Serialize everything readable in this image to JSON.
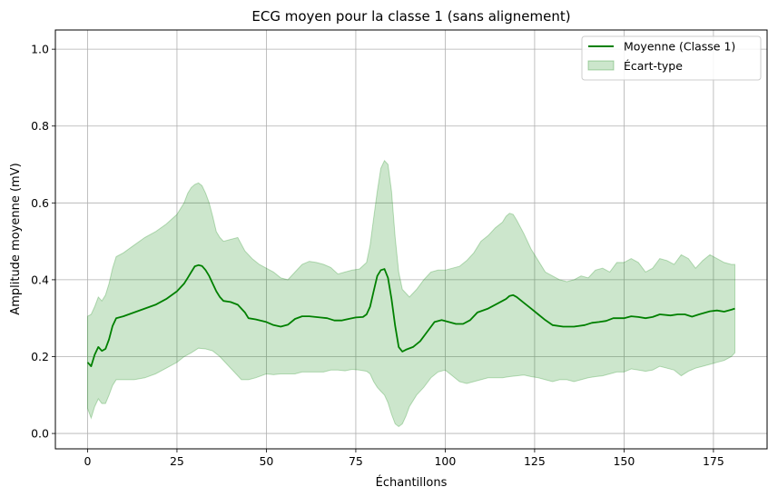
{
  "chart_data": {
    "type": "line",
    "title": "ECG moyen pour la classe 1 (sans alignement)",
    "xlabel": "Échantillons",
    "ylabel": "Amplitude moyenne (mV)",
    "xlim": [
      -9,
      190
    ],
    "ylim": [
      -0.04,
      1.05
    ],
    "xticks": [
      0,
      25,
      50,
      75,
      100,
      125,
      150,
      175
    ],
    "yticks": [
      0.0,
      0.2,
      0.4,
      0.6,
      0.8,
      1.0
    ],
    "xtick_labels": [
      "0",
      "25",
      "50",
      "75",
      "100",
      "125",
      "150",
      "175"
    ],
    "ytick_labels": [
      "0.0",
      "0.2",
      "0.4",
      "0.6",
      "0.8",
      "1.0"
    ],
    "grid": true,
    "legend_position": "top-right",
    "legend": {
      "mean_label": "Moyenne (Classe 1)",
      "std_label": "Écart-type"
    },
    "colors": {
      "mean_line": "#008000",
      "std_fill": "#008000",
      "grid": "#b0b0b0"
    },
    "mean_points": [
      [
        0,
        0.185
      ],
      [
        1,
        0.175
      ],
      [
        2,
        0.205
      ],
      [
        3,
        0.225
      ],
      [
        4,
        0.215
      ],
      [
        5,
        0.22
      ],
      [
        6,
        0.245
      ],
      [
        7,
        0.28
      ],
      [
        8,
        0.3
      ],
      [
        10,
        0.305
      ],
      [
        13,
        0.315
      ],
      [
        16,
        0.325
      ],
      [
        19,
        0.335
      ],
      [
        22,
        0.35
      ],
      [
        25,
        0.37
      ],
      [
        27,
        0.39
      ],
      [
        28,
        0.405
      ],
      [
        29,
        0.42
      ],
      [
        30,
        0.435
      ],
      [
        31,
        0.438
      ],
      [
        32,
        0.436
      ],
      [
        33,
        0.425
      ],
      [
        34,
        0.41
      ],
      [
        35,
        0.39
      ],
      [
        36,
        0.37
      ],
      [
        37,
        0.355
      ],
      [
        38,
        0.345
      ],
      [
        40,
        0.342
      ],
      [
        42,
        0.335
      ],
      [
        44,
        0.315
      ],
      [
        45,
        0.3
      ],
      [
        47,
        0.297
      ],
      [
        50,
        0.29
      ],
      [
        52,
        0.282
      ],
      [
        54,
        0.278
      ],
      [
        56,
        0.283
      ],
      [
        58,
        0.298
      ],
      [
        60,
        0.305
      ],
      [
        62,
        0.305
      ],
      [
        65,
        0.302
      ],
      [
        67,
        0.3
      ],
      [
        69,
        0.294
      ],
      [
        71,
        0.294
      ],
      [
        73,
        0.298
      ],
      [
        75,
        0.302
      ],
      [
        77,
        0.303
      ],
      [
        78,
        0.31
      ],
      [
        79,
        0.33
      ],
      [
        80,
        0.37
      ],
      [
        81,
        0.41
      ],
      [
        82,
        0.425
      ],
      [
        83,
        0.428
      ],
      [
        84,
        0.405
      ],
      [
        85,
        0.35
      ],
      [
        86,
        0.28
      ],
      [
        87,
        0.225
      ],
      [
        88,
        0.213
      ],
      [
        89,
        0.218
      ],
      [
        91,
        0.225
      ],
      [
        93,
        0.24
      ],
      [
        95,
        0.265
      ],
      [
        97,
        0.29
      ],
      [
        99,
        0.295
      ],
      [
        101,
        0.29
      ],
      [
        103,
        0.285
      ],
      [
        105,
        0.285
      ],
      [
        107,
        0.295
      ],
      [
        109,
        0.315
      ],
      [
        112,
        0.325
      ],
      [
        115,
        0.34
      ],
      [
        117,
        0.35
      ],
      [
        118,
        0.358
      ],
      [
        119,
        0.36
      ],
      [
        120,
        0.355
      ],
      [
        122,
        0.34
      ],
      [
        124,
        0.325
      ],
      [
        126,
        0.31
      ],
      [
        128,
        0.295
      ],
      [
        130,
        0.282
      ],
      [
        133,
        0.278
      ],
      [
        136,
        0.278
      ],
      [
        139,
        0.282
      ],
      [
        141,
        0.288
      ],
      [
        143,
        0.29
      ],
      [
        145,
        0.293
      ],
      [
        147,
        0.3
      ],
      [
        150,
        0.3
      ],
      [
        152,
        0.305
      ],
      [
        154,
        0.303
      ],
      [
        156,
        0.3
      ],
      [
        158,
        0.303
      ],
      [
        160,
        0.31
      ],
      [
        163,
        0.307
      ],
      [
        165,
        0.31
      ],
      [
        167,
        0.31
      ],
      [
        169,
        0.304
      ],
      [
        171,
        0.31
      ],
      [
        174,
        0.318
      ],
      [
        176,
        0.32
      ],
      [
        178,
        0.317
      ],
      [
        180,
        0.322
      ],
      [
        181,
        0.325
      ]
    ],
    "std_upper": [
      [
        0,
        0.305
      ],
      [
        1,
        0.31
      ],
      [
        2,
        0.33
      ],
      [
        3,
        0.355
      ],
      [
        4,
        0.345
      ],
      [
        5,
        0.36
      ],
      [
        6,
        0.39
      ],
      [
        7,
        0.43
      ],
      [
        8,
        0.46
      ],
      [
        10,
        0.47
      ],
      [
        13,
        0.49
      ],
      [
        16,
        0.51
      ],
      [
        19,
        0.525
      ],
      [
        22,
        0.545
      ],
      [
        25,
        0.57
      ],
      [
        27,
        0.6
      ],
      [
        28,
        0.625
      ],
      [
        29,
        0.64
      ],
      [
        30,
        0.648
      ],
      [
        31,
        0.652
      ],
      [
        32,
        0.645
      ],
      [
        33,
        0.625
      ],
      [
        34,
        0.6
      ],
      [
        35,
        0.565
      ],
      [
        36,
        0.525
      ],
      [
        37,
        0.51
      ],
      [
        38,
        0.5
      ],
      [
        40,
        0.505
      ],
      [
        42,
        0.51
      ],
      [
        44,
        0.475
      ],
      [
        46,
        0.455
      ],
      [
        48,
        0.44
      ],
      [
        50,
        0.43
      ],
      [
        52,
        0.42
      ],
      [
        54,
        0.405
      ],
      [
        56,
        0.4
      ],
      [
        58,
        0.42
      ],
      [
        60,
        0.44
      ],
      [
        62,
        0.448
      ],
      [
        64,
        0.445
      ],
      [
        66,
        0.44
      ],
      [
        68,
        0.432
      ],
      [
        70,
        0.415
      ],
      [
        72,
        0.42
      ],
      [
        74,
        0.425
      ],
      [
        76,
        0.428
      ],
      [
        78,
        0.445
      ],
      [
        79,
        0.49
      ],
      [
        80,
        0.56
      ],
      [
        81,
        0.63
      ],
      [
        82,
        0.69
      ],
      [
        83,
        0.71
      ],
      [
        84,
        0.7
      ],
      [
        85,
        0.63
      ],
      [
        86,
        0.51
      ],
      [
        87,
        0.42
      ],
      [
        88,
        0.375
      ],
      [
        90,
        0.355
      ],
      [
        92,
        0.375
      ],
      [
        94,
        0.4
      ],
      [
        96,
        0.42
      ],
      [
        98,
        0.425
      ],
      [
        100,
        0.425
      ],
      [
        102,
        0.43
      ],
      [
        104,
        0.435
      ],
      [
        106,
        0.45
      ],
      [
        108,
        0.47
      ],
      [
        110,
        0.5
      ],
      [
        112,
        0.515
      ],
      [
        114,
        0.535
      ],
      [
        116,
        0.55
      ],
      [
        117,
        0.565
      ],
      [
        118,
        0.573
      ],
      [
        119,
        0.57
      ],
      [
        120,
        0.555
      ],
      [
        122,
        0.52
      ],
      [
        124,
        0.48
      ],
      [
        126,
        0.45
      ],
      [
        128,
        0.42
      ],
      [
        130,
        0.41
      ],
      [
        132,
        0.4
      ],
      [
        134,
        0.395
      ],
      [
        136,
        0.4
      ],
      [
        138,
        0.41
      ],
      [
        140,
        0.405
      ],
      [
        142,
        0.425
      ],
      [
        144,
        0.43
      ],
      [
        146,
        0.42
      ],
      [
        148,
        0.445
      ],
      [
        150,
        0.445
      ],
      [
        152,
        0.455
      ],
      [
        154,
        0.445
      ],
      [
        156,
        0.42
      ],
      [
        158,
        0.43
      ],
      [
        160,
        0.455
      ],
      [
        162,
        0.45
      ],
      [
        164,
        0.44
      ],
      [
        166,
        0.465
      ],
      [
        168,
        0.455
      ],
      [
        170,
        0.43
      ],
      [
        172,
        0.45
      ],
      [
        174,
        0.465
      ],
      [
        176,
        0.455
      ],
      [
        178,
        0.445
      ],
      [
        180,
        0.44
      ],
      [
        181,
        0.44
      ]
    ],
    "std_lower": [
      [
        0,
        0.065
      ],
      [
        1,
        0.04
      ],
      [
        2,
        0.07
      ],
      [
        3,
        0.09
      ],
      [
        4,
        0.078
      ],
      [
        5,
        0.078
      ],
      [
        6,
        0.1
      ],
      [
        7,
        0.125
      ],
      [
        8,
        0.14
      ],
      [
        10,
        0.14
      ],
      [
        13,
        0.14
      ],
      [
        16,
        0.145
      ],
      [
        19,
        0.155
      ],
      [
        22,
        0.17
      ],
      [
        25,
        0.185
      ],
      [
        27,
        0.2
      ],
      [
        29,
        0.21
      ],
      [
        31,
        0.222
      ],
      [
        33,
        0.22
      ],
      [
        35,
        0.215
      ],
      [
        37,
        0.2
      ],
      [
        39,
        0.18
      ],
      [
        41,
        0.16
      ],
      [
        43,
        0.14
      ],
      [
        45,
        0.14
      ],
      [
        47,
        0.145
      ],
      [
        50,
        0.155
      ],
      [
        52,
        0.153
      ],
      [
        54,
        0.155
      ],
      [
        56,
        0.155
      ],
      [
        58,
        0.155
      ],
      [
        60,
        0.16
      ],
      [
        62,
        0.16
      ],
      [
        64,
        0.16
      ],
      [
        66,
        0.16
      ],
      [
        68,
        0.165
      ],
      [
        70,
        0.165
      ],
      [
        72,
        0.163
      ],
      [
        74,
        0.167
      ],
      [
        76,
        0.165
      ],
      [
        78,
        0.162
      ],
      [
        79,
        0.155
      ],
      [
        80,
        0.135
      ],
      [
        81,
        0.12
      ],
      [
        82,
        0.11
      ],
      [
        83,
        0.1
      ],
      [
        84,
        0.08
      ],
      [
        85,
        0.05
      ],
      [
        86,
        0.025
      ],
      [
        87,
        0.018
      ],
      [
        88,
        0.025
      ],
      [
        89,
        0.045
      ],
      [
        90,
        0.07
      ],
      [
        92,
        0.1
      ],
      [
        94,
        0.12
      ],
      [
        96,
        0.145
      ],
      [
        98,
        0.16
      ],
      [
        100,
        0.165
      ],
      [
        102,
        0.15
      ],
      [
        104,
        0.135
      ],
      [
        106,
        0.13
      ],
      [
        108,
        0.135
      ],
      [
        110,
        0.14
      ],
      [
        112,
        0.145
      ],
      [
        114,
        0.145
      ],
      [
        116,
        0.145
      ],
      [
        118,
        0.148
      ],
      [
        120,
        0.15
      ],
      [
        122,
        0.152
      ],
      [
        124,
        0.148
      ],
      [
        126,
        0.145
      ],
      [
        128,
        0.14
      ],
      [
        130,
        0.135
      ],
      [
        132,
        0.14
      ],
      [
        134,
        0.14
      ],
      [
        136,
        0.135
      ],
      [
        138,
        0.14
      ],
      [
        140,
        0.145
      ],
      [
        142,
        0.148
      ],
      [
        144,
        0.15
      ],
      [
        146,
        0.155
      ],
      [
        148,
        0.16
      ],
      [
        150,
        0.16
      ],
      [
        152,
        0.168
      ],
      [
        154,
        0.165
      ],
      [
        156,
        0.162
      ],
      [
        158,
        0.165
      ],
      [
        160,
        0.175
      ],
      [
        162,
        0.17
      ],
      [
        164,
        0.165
      ],
      [
        166,
        0.15
      ],
      [
        168,
        0.162
      ],
      [
        170,
        0.17
      ],
      [
        172,
        0.175
      ],
      [
        174,
        0.18
      ],
      [
        176,
        0.185
      ],
      [
        178,
        0.19
      ],
      [
        180,
        0.2
      ],
      [
        181,
        0.21
      ]
    ]
  }
}
